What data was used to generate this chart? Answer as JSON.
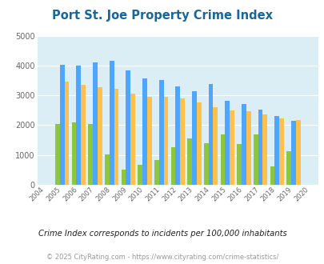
{
  "title": "Port St. Joe Property Crime Index",
  "years": [
    2004,
    2005,
    2006,
    2007,
    2008,
    2009,
    2010,
    2011,
    2012,
    2013,
    2014,
    2015,
    2016,
    2017,
    2018,
    2019,
    2020
  ],
  "port_st_joe": [
    null,
    2050,
    2080,
    2030,
    1020,
    520,
    660,
    820,
    1250,
    1560,
    1400,
    1680,
    1360,
    1680,
    630,
    1120,
    null
  ],
  "florida": [
    null,
    4020,
    4000,
    4090,
    4150,
    3840,
    3580,
    3510,
    3300,
    3130,
    3380,
    2820,
    2700,
    2510,
    2310,
    2150,
    null
  ],
  "national": [
    null,
    3450,
    3340,
    3270,
    3220,
    3050,
    2960,
    2960,
    2890,
    2750,
    2600,
    2490,
    2470,
    2360,
    2230,
    2160,
    null
  ],
  "port_color": "#8dc63f",
  "florida_color": "#4da6ff",
  "national_color": "#ffc04d",
  "bg_color": "#dceef5",
  "ylim": [
    0,
    5000
  ],
  "ylabel_ticks": [
    0,
    1000,
    2000,
    3000,
    4000,
    5000
  ],
  "subtitle": "Crime Index corresponds to incidents per 100,000 inhabitants",
  "footer": "© 2025 CityRating.com - https://www.cityrating.com/crime-statistics/",
  "title_color": "#1a6699",
  "footer_color": "#999999",
  "subtitle_color": "#222222"
}
